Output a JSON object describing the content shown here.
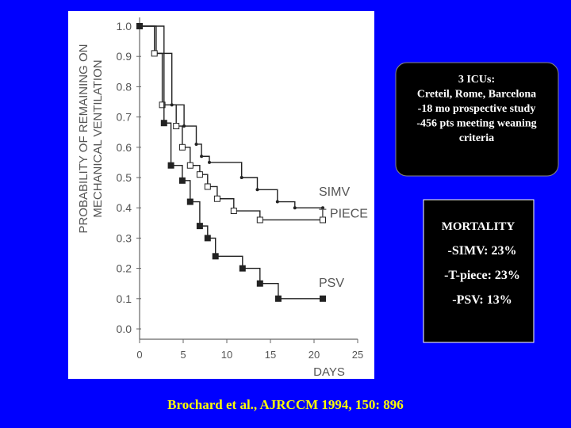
{
  "chart_data": {
    "type": "line",
    "step": "post",
    "ylabel": [
      "PROBABILITY OF REMAINING ON",
      "MECHANICAL VENTILATION"
    ],
    "xlabel": "DAYS",
    "xlim": [
      0,
      25
    ],
    "xticks": [
      0,
      5,
      10,
      15,
      20,
      25
    ],
    "ylim": [
      0,
      1
    ],
    "yticks": [
      {
        "value": 0,
        "label": "0.0"
      },
      0.1,
      0.2,
      0.3,
      0.4,
      0.5,
      0.6,
      0.7,
      0.8,
      0.9,
      {
        "value": 1,
        "label": "1.0"
      }
    ],
    "series": [
      {
        "name": "SIMV",
        "color": "#222222",
        "marker": "dot",
        "x": [
          0,
          1.9,
          3.7,
          5.1,
          6.5,
          7.1,
          8,
          11.7,
          13.5,
          15.8,
          17.8,
          21
        ],
        "values": [
          1.0,
          0.91,
          0.74,
          0.67,
          0.61,
          0.57,
          0.55,
          0.5,
          0.46,
          0.42,
          0.4,
          0.4
        ]
      },
      {
        "name": "T PIECE",
        "color": "#222222",
        "marker": "open-square",
        "x": [
          0,
          1.7,
          2.6,
          4.2,
          4.9,
          5.8,
          6.9,
          7.8,
          8.9,
          10.8,
          13.8,
          21
        ],
        "values": [
          1.0,
          0.91,
          0.74,
          0.67,
          0.6,
          0.54,
          0.51,
          0.47,
          0.43,
          0.39,
          0.36,
          0.36
        ]
      },
      {
        "name": "PSV",
        "color": "#222222",
        "marker": "filled-square",
        "x": [
          0,
          2.8,
          3.6,
          4.9,
          5.8,
          6.9,
          7.8,
          8.7,
          11.8,
          13.8,
          15.9,
          21
        ],
        "values": [
          1.0,
          0.68,
          0.54,
          0.49,
          0.42,
          0.34,
          0.3,
          0.24,
          0.2,
          0.15,
          0.1,
          0.1
        ]
      }
    ]
  },
  "info_box": {
    "lines": [
      "3 ICUs:",
      "Creteil, Rome, Barcelona",
      "-18 mo prospective study",
      "-456 pts meeting weaning",
      "criteria"
    ]
  },
  "mortality_box": {
    "title": "MORTALITY",
    "lines": [
      "-SIMV: 23%",
      "-T-piece: 23%",
      "-PSV: 13%"
    ]
  },
  "citation": "Brochard et al., AJRCCM 1994, 150: 896"
}
